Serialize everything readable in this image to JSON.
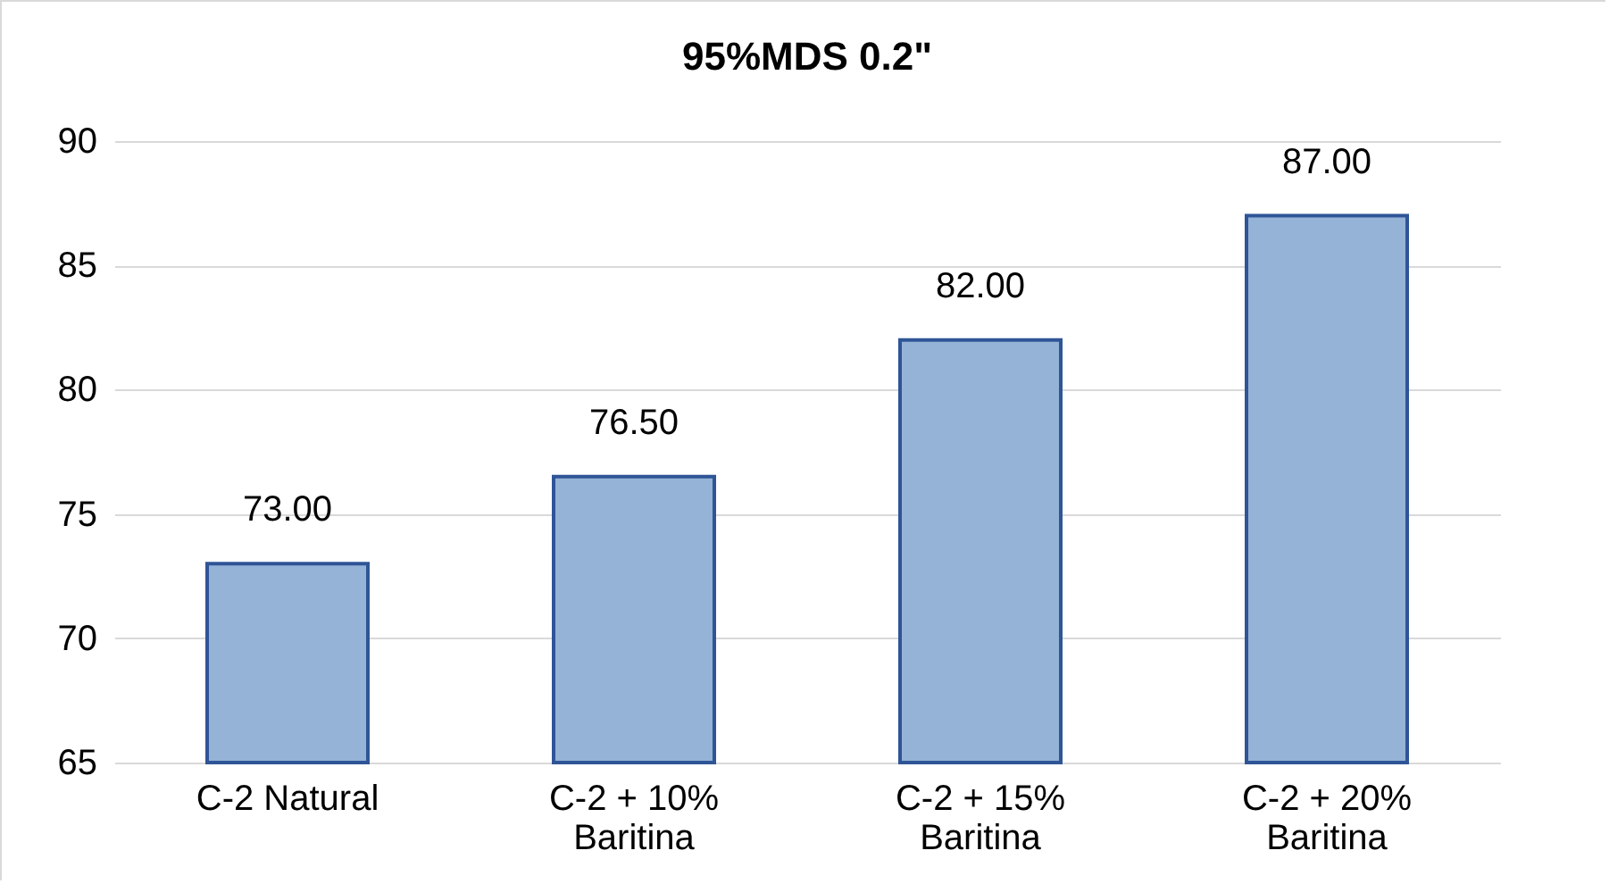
{
  "chart_data": {
    "type": "bar",
    "title": "95%MDS 0.2\"",
    "categories": [
      "C-2 Natural",
      "C-2 + 10%\nBaritina",
      "C-2 + 15%\nBaritina",
      "C-2 + 20%\nBaritina"
    ],
    "values": [
      73,
      76.5,
      82,
      87
    ],
    "value_labels": [
      "73.00",
      "76.50",
      "82.00",
      "87.00"
    ],
    "color": "#95b3d7",
    "ylim": [
      65,
      90
    ],
    "yticks": [
      65,
      70,
      75,
      80,
      85,
      90
    ],
    "grid": "y"
  }
}
